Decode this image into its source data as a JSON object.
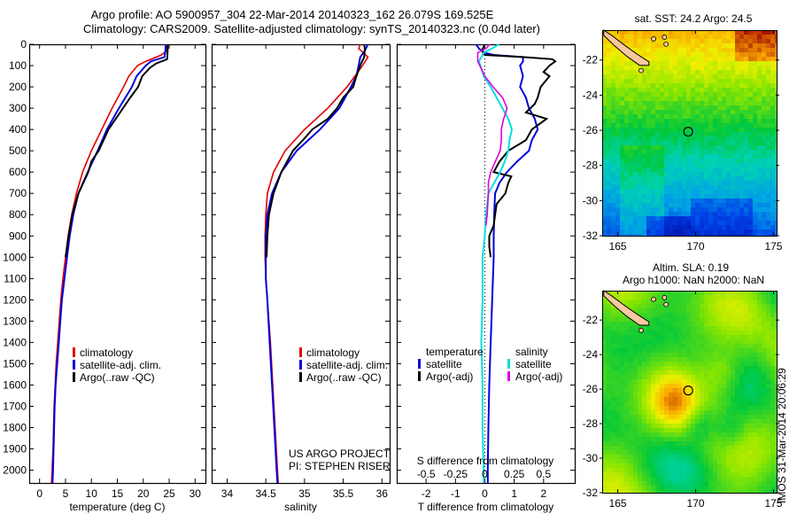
{
  "header": {
    "line1": "Argo profile: AO 5900957_304 22-Mar-2014 20140323_162 26.079S 169.525E",
    "line2": "Climatology: CARS2009. Satellite-adjusted climatology: synTS_20140323.nc (0.04d later)"
  },
  "colors": {
    "climatology": "#e00000",
    "satellite": "#0000e0",
    "argo": "#000000",
    "sal_satellite": "#00e0e0",
    "sal_argo": "#e000e0"
  },
  "chart_data": [
    {
      "type": "line",
      "name": "temperature-profile",
      "xlabel": "temperature (deg C)",
      "ylabel": "",
      "xlim": [
        -2,
        32
      ],
      "ylim": [
        2060,
        0
      ],
      "xticks": [
        0,
        5,
        10,
        15,
        20,
        25,
        30
      ],
      "yticks": [
        0,
        100,
        200,
        300,
        400,
        500,
        600,
        700,
        800,
        900,
        1000,
        1100,
        1200,
        1300,
        1400,
        1500,
        1600,
        1700,
        1800,
        1900,
        2000
      ],
      "legend": [
        "climatology",
        "satellite-adj. clim.",
        "Argo(..raw -QC)"
      ],
      "legend_position": "middle-center",
      "series": [
        {
          "name": "climatology",
          "color_key": "climatology",
          "depth": [
            0,
            30,
            50,
            80,
            100,
            150,
            200,
            300,
            400,
            500,
            600,
            700,
            800,
            900,
            1000,
            1100,
            1200,
            1300,
            1400,
            1500,
            1600,
            1700,
            1800,
            1900,
            2000,
            2060
          ],
          "values": [
            24.6,
            24.5,
            23.5,
            20.5,
            18.9,
            17.2,
            16.2,
            14.0,
            12.0,
            10.0,
            8.3,
            7.1,
            6.2,
            5.5,
            5.0,
            4.5,
            4.1,
            3.8,
            3.5,
            3.2,
            3.0,
            2.8,
            2.7,
            2.6,
            2.4,
            2.3
          ]
        },
        {
          "name": "satellite-adj. clim.",
          "color_key": "satellite",
          "depth": [
            0,
            30,
            60,
            80,
            100,
            150,
            200,
            300,
            400,
            500,
            600,
            700,
            800,
            900,
            1000,
            1100,
            1200,
            1300,
            1400,
            1500,
            1600,
            1700,
            1800,
            1900,
            2000,
            2060
          ],
          "values": [
            24.3,
            24.3,
            24.1,
            21.5,
            20.5,
            18.7,
            17.8,
            15.3,
            13.0,
            11.2,
            9.3,
            7.5,
            6.5,
            5.8,
            5.3,
            4.8,
            4.3,
            4.0,
            3.7,
            3.4,
            3.1,
            2.9,
            2.8,
            2.7,
            2.6,
            2.5
          ]
        },
        {
          "name": "Argo(..raw -QC)",
          "color_key": "argo",
          "depth": [
            0,
            30,
            70,
            90,
            110,
            150,
            200,
            250,
            300,
            400,
            500,
            550,
            600,
            700,
            800,
            900,
            1000
          ],
          "values": [
            24.7,
            24.7,
            24.6,
            22.5,
            21.3,
            19.8,
            19.0,
            17.5,
            16.1,
            13.3,
            11.4,
            10.0,
            9.4,
            7.5,
            6.3,
            5.6,
            5.0
          ]
        }
      ]
    },
    {
      "type": "line",
      "name": "salinity-profile",
      "xlabel": "salinity",
      "ylabel": "",
      "xlim": [
        33.8,
        36.1
      ],
      "ylim": [
        2060,
        0
      ],
      "xticks": [
        34,
        34.5,
        35,
        35.5,
        36
      ],
      "xticklabels": [
        "34",
        "34.5",
        "35",
        "35.5",
        "36"
      ],
      "legend": [
        "climatology",
        "satellite-adj. clim.",
        "Argo(..raw -QC)"
      ],
      "legend_position": "middle-right",
      "annotation": [
        "US ARGO PROJECT",
        "PI: STEPHEN RISER"
      ],
      "series": [
        {
          "name": "climatology",
          "color_key": "climatology",
          "depth": [
            0,
            20,
            60,
            100,
            150,
            200,
            300,
            400,
            500,
            600,
            700,
            800,
            900,
            1000,
            1100,
            1200,
            1400,
            1600,
            1800,
            2000,
            2060
          ],
          "values": [
            35.72,
            35.7,
            35.82,
            35.75,
            35.65,
            35.55,
            35.3,
            35.0,
            34.75,
            34.6,
            34.52,
            34.5,
            34.49,
            34.49,
            34.5,
            34.52,
            34.56,
            34.59,
            34.62,
            34.65,
            34.66
          ]
        },
        {
          "name": "satellite-adj. clim.",
          "color_key": "satellite",
          "depth": [
            0,
            30,
            60,
            100,
            150,
            200,
            300,
            400,
            500,
            600,
            700,
            800,
            900,
            1000,
            1100,
            1200,
            1400,
            1600,
            1800,
            2000,
            2060
          ],
          "values": [
            35.82,
            35.78,
            35.72,
            35.7,
            35.67,
            35.6,
            35.45,
            35.2,
            34.9,
            34.7,
            34.58,
            34.52,
            34.5,
            34.5,
            34.5,
            34.52,
            34.55,
            34.58,
            34.61,
            34.64,
            34.65
          ]
        },
        {
          "name": "Argo(..raw -QC)",
          "color_key": "argo",
          "depth": [
            0,
            20,
            60,
            100,
            150,
            200,
            250,
            300,
            350,
            400,
            450,
            500,
            600,
            700,
            800,
            900,
            1000
          ],
          "values": [
            35.77,
            35.78,
            35.77,
            35.72,
            35.67,
            35.63,
            35.5,
            35.42,
            35.3,
            35.1,
            34.98,
            34.85,
            34.7,
            34.6,
            34.54,
            34.52,
            34.51
          ]
        }
      ]
    },
    {
      "type": "line",
      "name": "difference-profile",
      "xlabel": "T difference from climatology",
      "xlabel_top": "S difference from climatology",
      "xlim": [
        -3,
        3.06
      ],
      "xlim_s": [
        -0.75,
        0.765
      ],
      "ylim": [
        2060,
        0
      ],
      "xticks": [
        -2,
        -1,
        0,
        1,
        2
      ],
      "xticks_s": [
        -0.5,
        -0.25,
        0,
        0.25,
        0.5
      ],
      "xticklabels_s": [
        "-0.5",
        "-0.25",
        "0",
        "0.25",
        "0.5"
      ],
      "legend_temperature_title": "temperature",
      "legend_salinity_title": "salinity",
      "legend_temperature": [
        "satellite",
        "Argo(-adj)"
      ],
      "legend_salinity": [
        "satellite",
        "Argo(-adj)"
      ],
      "series": [
        {
          "name": "temperature satellite",
          "axis": "T",
          "color_key": "satellite",
          "depth": [
            0,
            20,
            40,
            50,
            60,
            80,
            100,
            150,
            200,
            250,
            300,
            350,
            400,
            450,
            500,
            550,
            600,
            650,
            700,
            750,
            800,
            900,
            1000,
            1200,
            1400,
            1600,
            1800,
            2000,
            2060
          ],
          "values": [
            -0.3,
            -0.2,
            0.0,
            0.3,
            1.3,
            1.3,
            1.2,
            1.3,
            1.2,
            1.4,
            1.5,
            1.7,
            1.8,
            1.6,
            1.5,
            1.1,
            0.75,
            0.5,
            0.35,
            0.33,
            0.32,
            0.3,
            0.3,
            0.25,
            0.2,
            0.15,
            0.12,
            0.1,
            0.1
          ]
        },
        {
          "name": "temperature Argo(-adj)",
          "axis": "T",
          "color_key": "argo",
          "depth": [
            0,
            30,
            50,
            60,
            70,
            80,
            100,
            130,
            150,
            200,
            250,
            280,
            320,
            350,
            400,
            450,
            500,
            550,
            600,
            620,
            650,
            700,
            750,
            800,
            850,
            900,
            950,
            1000
          ],
          "values": [
            0.0,
            -0.1,
            0.0,
            1.3,
            2.3,
            2.4,
            2.2,
            2.0,
            2.2,
            1.9,
            1.8,
            1.7,
            1.4,
            2.1,
            1.6,
            1.4,
            0.8,
            0.5,
            0.3,
            0.9,
            0.8,
            0.7,
            0.4,
            0.35,
            0.3,
            0.15,
            0.15,
            0.2
          ]
        },
        {
          "name": "salinity satellite",
          "axis": "S",
          "color_key": "sal_satellite",
          "depth": [
            0,
            20,
            40,
            80,
            150,
            200,
            300,
            350,
            400,
            450,
            500,
            550,
            600,
            650,
            700,
            800,
            900,
            1000,
            1200,
            1400,
            1600,
            1800,
            2000,
            2060
          ],
          "values": [
            0.12,
            0.06,
            -0.01,
            -0.05,
            -0.01,
            0.05,
            0.15,
            0.2,
            0.23,
            0.21,
            0.2,
            0.17,
            0.13,
            0.08,
            0.03,
            0.01,
            0.0,
            -0.02,
            -0.02,
            -0.03,
            -0.02,
            -0.02,
            -0.01,
            -0.01
          ]
        },
        {
          "name": "salinity Argo(-adj)",
          "axis": "S",
          "color_key": "sal_argo",
          "depth": [
            0,
            20,
            40,
            80,
            150,
            200,
            250,
            300,
            350,
            400,
            450,
            500,
            550,
            600,
            650,
            700,
            800,
            850
          ],
          "values": [
            0.04,
            0.01,
            -0.06,
            -0.06,
            0.0,
            0.07,
            0.15,
            0.19,
            0.16,
            0.14,
            0.14,
            0.13,
            0.09,
            0.05,
            0.03,
            0.03,
            0.02,
            0.01
          ]
        }
      ]
    },
    {
      "type": "heatmap",
      "name": "sst-map",
      "title": "sat. SST: 24.2 Argo: 24.5",
      "xlim": [
        164,
        175.2
      ],
      "ylim": [
        -32,
        -20.3
      ],
      "xticks": [
        165,
        170,
        175
      ],
      "yticks": [
        -22,
        -24,
        -26,
        -28,
        -30,
        -32
      ],
      "argo_position": [
        169.525,
        -26.079
      ]
    },
    {
      "type": "heatmap",
      "name": "sla-map",
      "title": [
        "Altim. SLA: 0.19",
        "Argo h1000: NaN h2000: NaN"
      ],
      "xlim": [
        164,
        175.2
      ],
      "ylim": [
        -32,
        -20.3
      ],
      "xticks": [
        165,
        170,
        175
      ],
      "yticks": [
        -22,
        -24,
        -26,
        -28,
        -30,
        -32
      ],
      "argo_position": [
        169.525,
        -26.079
      ]
    }
  ],
  "footer": {
    "stamp": "IMOS 31-Mar-2014 20:06:29"
  }
}
